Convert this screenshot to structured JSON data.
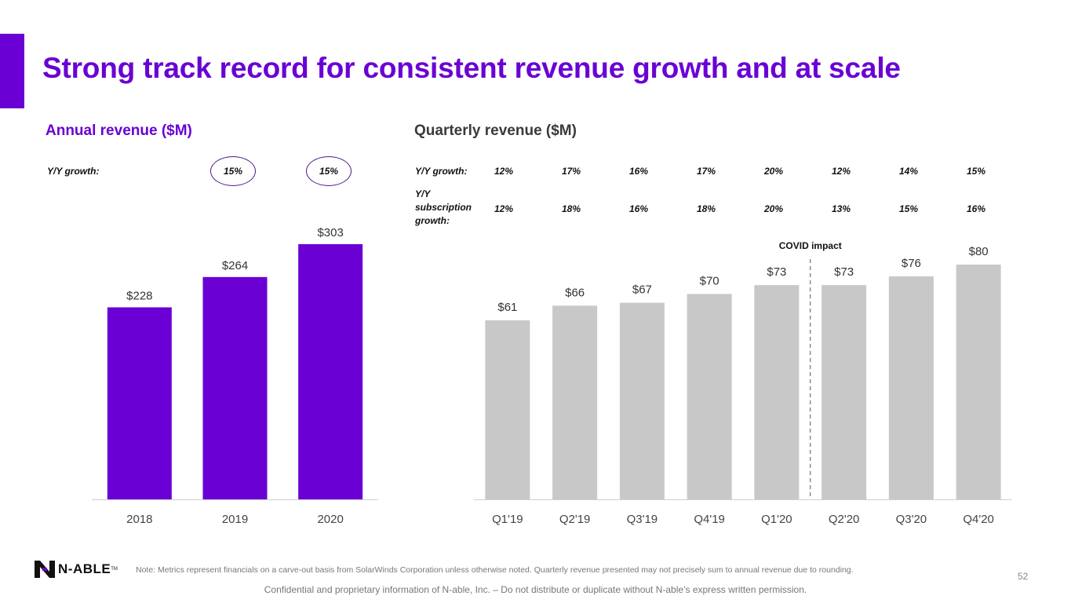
{
  "title": "Strong track record for consistent revenue growth and at scale",
  "annual": {
    "heading": "Annual revenue ($M)",
    "growth_label": "Y/Y growth:",
    "growth": [
      "15%",
      "15%"
    ]
  },
  "quarterly": {
    "heading": "Quarterly revenue ($M)",
    "growth_label": "Y/Y growth:",
    "growth": [
      "12%",
      "17%",
      "16%",
      "17%",
      "20%",
      "12%",
      "14%",
      "15%"
    ],
    "sub_label_lines": [
      "Y/Y",
      "subscription",
      "growth:"
    ],
    "sub_growth": [
      "12%",
      "18%",
      "16%",
      "18%",
      "20%",
      "13%",
      "15%",
      "16%"
    ],
    "covid_label": "COVID impact"
  },
  "chart_data": [
    {
      "type": "bar",
      "title": "Annual revenue ($M)",
      "categories": [
        "2018",
        "2019",
        "2020"
      ],
      "values": [
        228,
        264,
        303
      ],
      "labels": [
        "$228",
        "$264",
        "$303"
      ],
      "color": "#6a00d4",
      "ylim": [
        0,
        303
      ]
    },
    {
      "type": "bar",
      "title": "Quarterly revenue ($M)",
      "categories": [
        "Q1'19",
        "Q2'19",
        "Q3'19",
        "Q4'19",
        "Q1'20",
        "Q2'20",
        "Q3'20",
        "Q4'20"
      ],
      "values": [
        61,
        66,
        67,
        70,
        73,
        73,
        76,
        80
      ],
      "labels": [
        "$61",
        "$66",
        "$67",
        "$70",
        "$73",
        "$73",
        "$76",
        "$80"
      ],
      "color": "#c8c8c8",
      "ylim": [
        0,
        80
      ],
      "annotation": {
        "text": "COVID impact",
        "between": [
          "Q1'20",
          "Q2'20"
        ]
      }
    }
  ],
  "footer": {
    "logo_text": "N-ABLE",
    "logo_tm": "TM",
    "note": "Note: Metrics represent financials on a carve-out basis from SolarWinds Corporation unless otherwise noted. Quarterly revenue presented may not precisely sum to annual revenue due to rounding.",
    "page_number": "52",
    "confidential": "Confidential and proprietary information of N-able, Inc. – Do not distribute or duplicate without N-able’s express written permission."
  }
}
